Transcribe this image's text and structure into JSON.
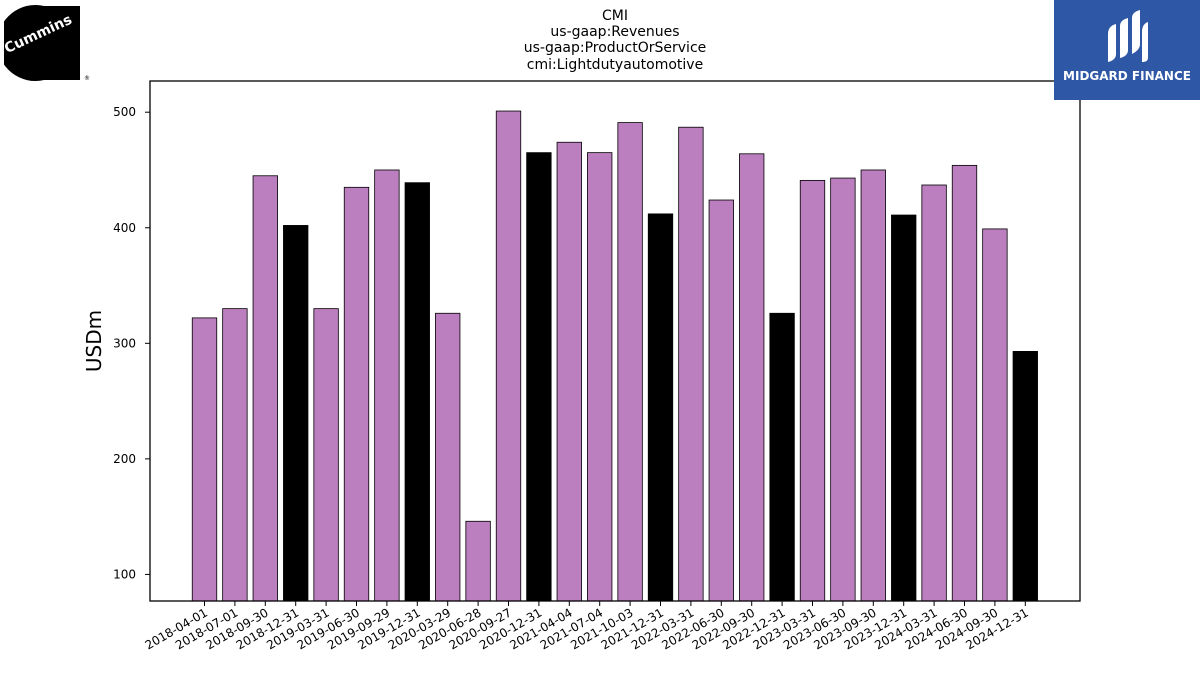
{
  "logos": {
    "left_text": "Cummins",
    "right_text": "MIDGARD FINANCE"
  },
  "colors": {
    "quarter_bar": "#bb7fbf",
    "year_end_bar": "#000000",
    "logo_right_bg": "#2e57a6"
  },
  "chart_data": {
    "type": "bar",
    "title_lines": [
      "CMI",
      "us-gaap:Revenues",
      "us-gaap:ProductOrService",
      "cmi:Lightdutyautomotive"
    ],
    "xlabel": "",
    "ylabel": "USDm",
    "ylim": [
      77,
      527
    ],
    "yticks": [
      100,
      200,
      300,
      400,
      500
    ],
    "grid": false,
    "categories": [
      "2018-04-01",
      "2018-07-01",
      "2018-09-30",
      "2018-12-31",
      "2019-03-31",
      "2019-06-30",
      "2019-09-29",
      "2019-12-31",
      "2020-03-29",
      "2020-06-28",
      "2020-09-27",
      "2020-12-31",
      "2021-04-04",
      "2021-07-04",
      "2021-10-03",
      "2021-12-31",
      "2022-03-31",
      "2022-06-30",
      "2022-09-30",
      "2022-12-31",
      "2023-03-31",
      "2023-06-30",
      "2023-09-30",
      "2023-12-31",
      "2024-03-31",
      "2024-06-30",
      "2024-09-30",
      "2024-12-31"
    ],
    "values": [
      322,
      330,
      445,
      402,
      330,
      435,
      450,
      439,
      326,
      146,
      501,
      465,
      474,
      465,
      491,
      412,
      487,
      424,
      464,
      326,
      441,
      443,
      450,
      411,
      437,
      454,
      399,
      293
    ],
    "year_end": [
      false,
      false,
      false,
      true,
      false,
      false,
      false,
      true,
      false,
      false,
      false,
      true,
      false,
      false,
      false,
      true,
      false,
      false,
      false,
      true,
      false,
      false,
      false,
      true,
      false,
      false,
      false,
      true
    ]
  }
}
